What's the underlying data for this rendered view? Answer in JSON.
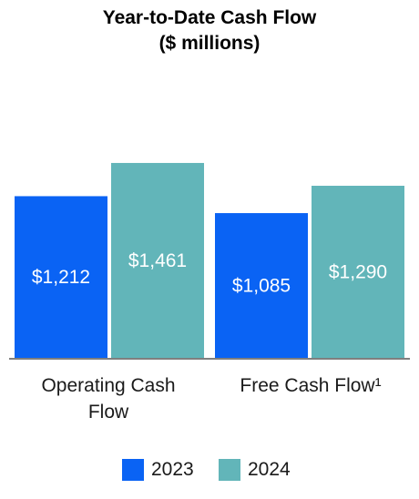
{
  "title_line1": "Year-to-Date Cash Flow",
  "title_line2": "($ millions)",
  "chart_data": {
    "type": "bar",
    "title": "Year-to-Date Cash Flow ($ millions)",
    "categories": [
      "Operating Cash Flow",
      "Free Cash Flow¹"
    ],
    "category_labels": [
      [
        "Operating Cash",
        "Flow"
      ],
      [
        "Free Cash Flow¹"
      ]
    ],
    "series": [
      {
        "name": "2023",
        "color": "#0a63f4",
        "values": [
          1212,
          1085
        ],
        "labels": [
          "$1,212",
          "$1,085"
        ]
      },
      {
        "name": "2024",
        "color": "#62b5b9",
        "values": [
          1461,
          1290
        ],
        "labels": [
          "$1,461",
          "$1,290"
        ]
      }
    ],
    "legend_position": "bottom",
    "grid": false
  }
}
